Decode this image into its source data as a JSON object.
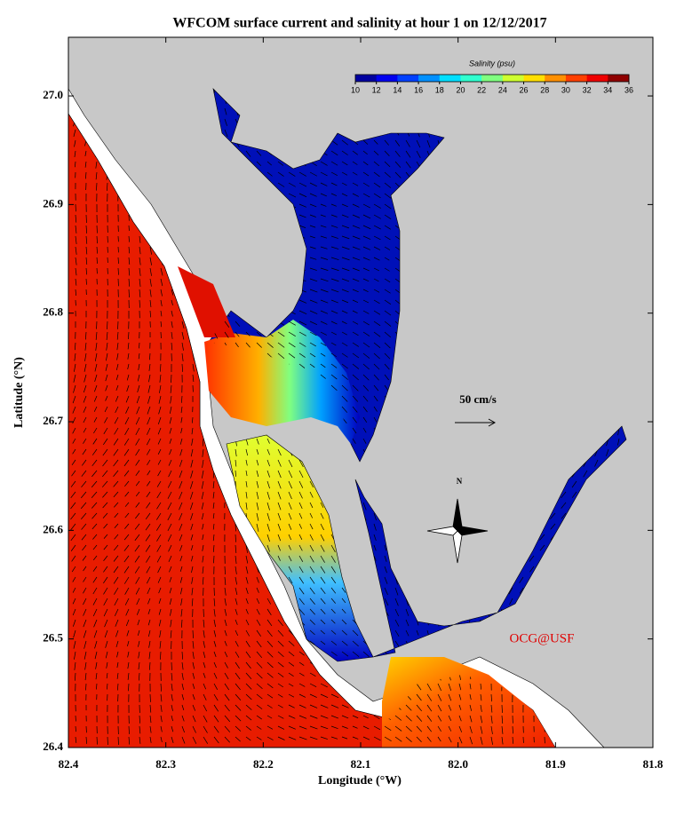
{
  "chart_data": {
    "type": "map",
    "title": "WFCOM surface current and salinity at hour 1 on 12/12/2017",
    "x_label": "Longitude (°W)",
    "y_label": "Latitude (°N)",
    "xlim": [
      82.4,
      81.8
    ],
    "ylim": [
      26.4,
      27.054
    ],
    "xticks": [
      82.4,
      82.3,
      82.2,
      82.1,
      {
        "value": 82,
        "label": "82.0"
      },
      81.9,
      81.8
    ],
    "yticks": [
      26.4,
      26.5,
      26.6,
      26.7,
      26.8,
      26.9,
      {
        "value": 27,
        "label": "27.0"
      }
    ],
    "colorbar": {
      "title": "Salinity (psu)",
      "lim": [
        10,
        36
      ],
      "ticks": [
        10,
        12,
        14,
        16,
        18,
        20,
        22,
        24,
        26,
        28,
        30,
        32,
        34,
        36
      ],
      "colors": [
        "#00009f",
        "#0000ef",
        "#0040ff",
        "#0090ff",
        "#00dfff",
        "#30ffcf",
        "#80ff80",
        "#cfff30",
        "#ffdf00",
        "#ff9000",
        "#ff4000",
        "#ef0000",
        "#8f0000"
      ]
    },
    "scale_label": "50 cm/s",
    "compass_label": "N",
    "credit": "OCG@USF"
  }
}
